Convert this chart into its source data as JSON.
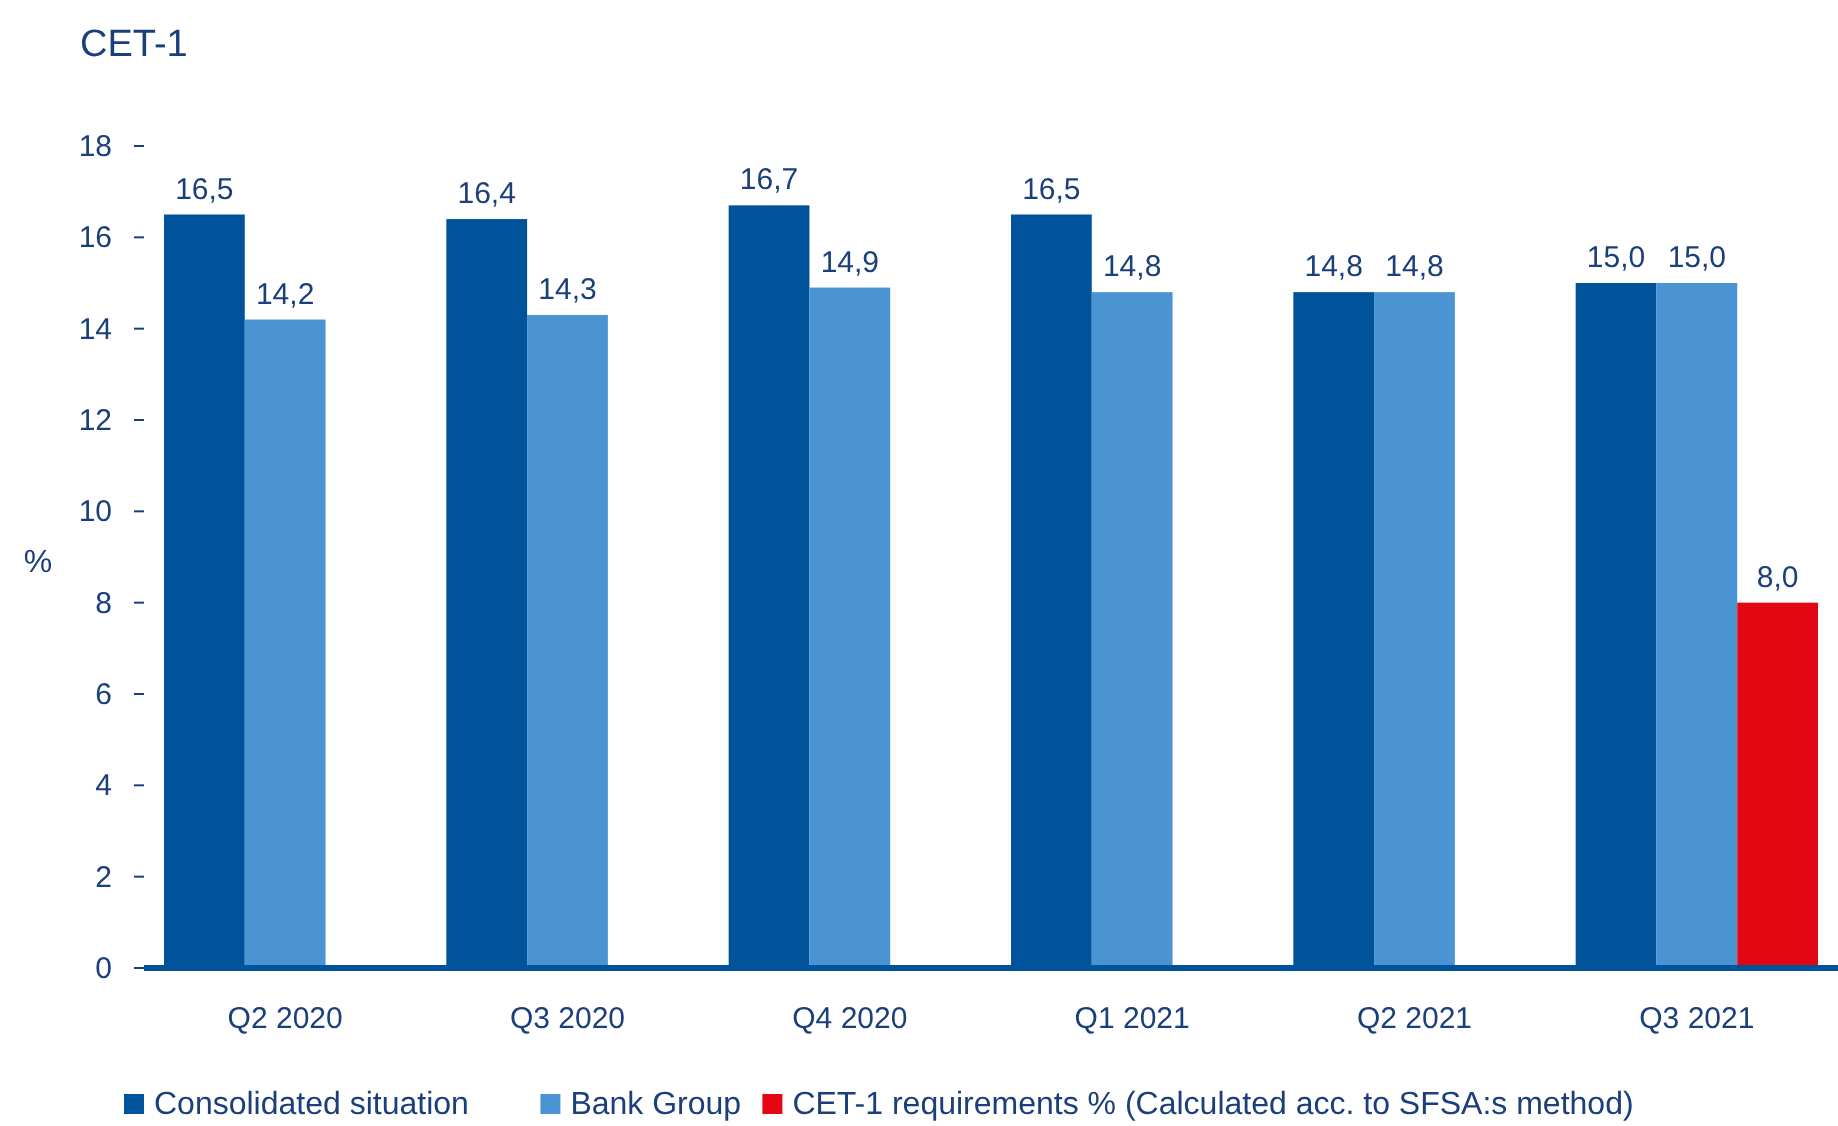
{
  "chart_data": {
    "type": "bar",
    "title": "CET-1",
    "ylabel": "%",
    "categories": [
      "Q2 2020",
      "Q3 2020",
      "Q4 2020",
      "Q1 2021",
      "Q2 2021",
      "Q3 2021"
    ],
    "series": [
      {
        "name": "Consolidated situation",
        "color": "#00539b",
        "values": [
          16.5,
          16.4,
          16.7,
          16.5,
          14.8,
          15.0
        ],
        "value_labels": [
          "16,5",
          "16,4",
          "16,7",
          "16,5",
          "14,8",
          "15,0"
        ]
      },
      {
        "name": "Bank Group",
        "color": "#4a94d3",
        "values": [
          14.2,
          14.3,
          14.9,
          14.8,
          14.8,
          15.0
        ],
        "value_labels": [
          "14,2",
          "14,3",
          "14,9",
          "14,8",
          "14,8",
          "15,0"
        ]
      },
      {
        "name": "CET-1 requirements % (Calculated acc. to SFSA:s method)",
        "color": "#e30613",
        "values": [
          null,
          null,
          null,
          null,
          null,
          8.0
        ],
        "value_labels": [
          null,
          null,
          null,
          null,
          null,
          "8,0"
        ]
      }
    ],
    "ylim": [
      0,
      18
    ],
    "yticks": [
      0,
      2,
      4,
      6,
      8,
      10,
      12,
      14,
      16,
      18
    ],
    "grid": false,
    "legend": "bottom left"
  }
}
